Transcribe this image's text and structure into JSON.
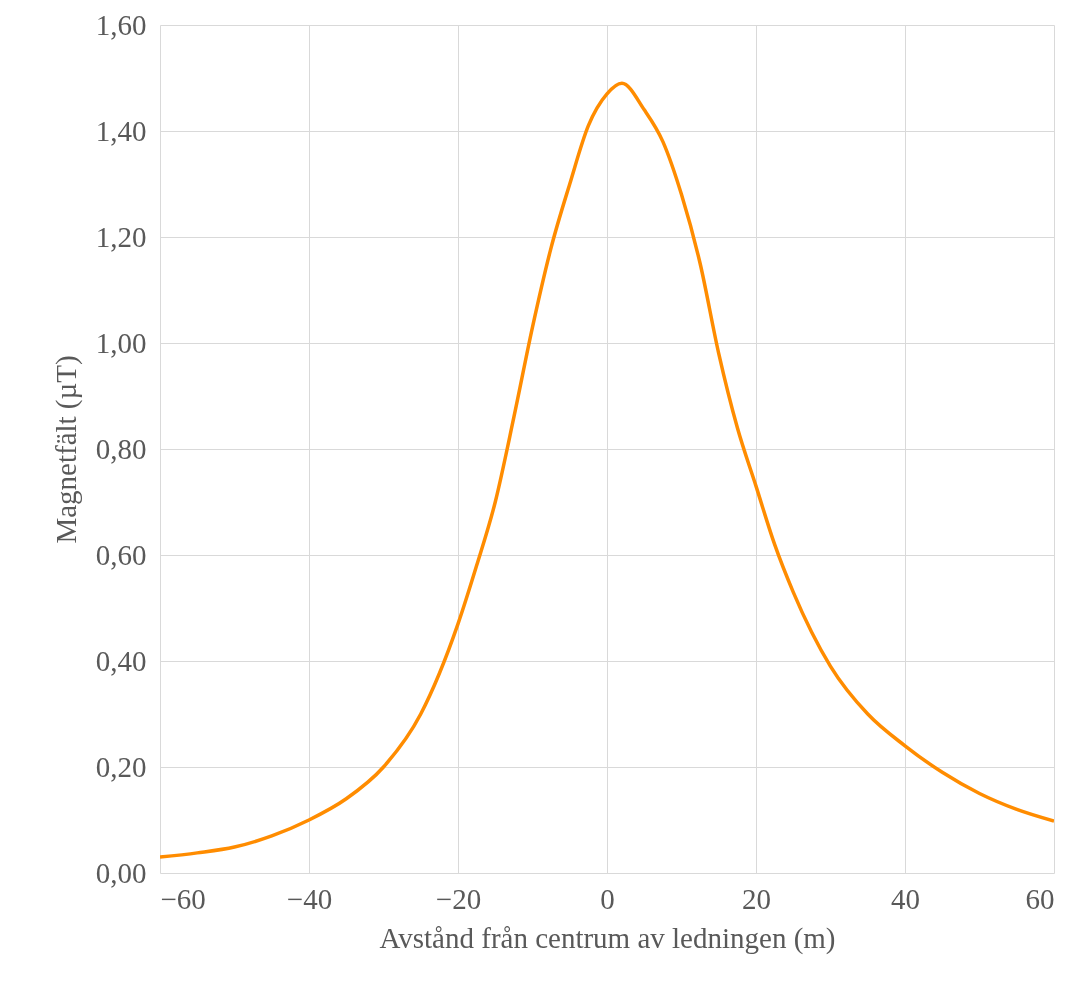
{
  "chart_data": {
    "type": "line",
    "xlabel": "Avstånd från centrum av ledningen (m)",
    "ylabel": "Magnetfält (µT)",
    "x": [
      -60,
      -55,
      -50,
      -45,
      -40,
      -35,
      -30,
      -25,
      -20,
      -17.5,
      -15,
      -12.5,
      -10,
      -7.5,
      -5,
      -2.5,
      0,
      2,
      5,
      7.5,
      10,
      12.5,
      15,
      17.5,
      20,
      22.5,
      25,
      30,
      35,
      40,
      45,
      50,
      55,
      60
    ],
    "series": [
      {
        "color": "#ff8c00",
        "values": [
          0.03,
          0.038,
          0.049,
          0.07,
          0.1,
          0.14,
          0.2,
          0.3,
          0.47,
          0.58,
          0.7,
          0.86,
          1.03,
          1.18,
          1.3,
          1.41,
          1.47,
          1.49,
          1.44,
          1.38,
          1.28,
          1.15,
          0.98,
          0.84,
          0.73,
          0.62,
          0.53,
          0.39,
          0.3,
          0.24,
          0.19,
          0.15,
          0.12,
          0.098
        ]
      }
    ],
    "xlim": [
      -60,
      60
    ],
    "xticks": [
      -60,
      -40,
      -20,
      0,
      20,
      40,
      60
    ],
    "ylim": [
      0,
      1.6
    ],
    "yticks": [
      {
        "value": 0,
        "label": "0,00"
      },
      {
        "value": 0.2,
        "label": "0,20"
      },
      {
        "value": 0.4,
        "label": "0,40"
      },
      {
        "value": 0.6,
        "label": "0,60"
      },
      {
        "value": 0.8,
        "label": "0,80"
      },
      {
        "value": 1,
        "label": "1,00"
      },
      {
        "value": 1.2,
        "label": "1,20"
      },
      {
        "value": 1.4,
        "label": "1,40"
      },
      {
        "value": 1.6,
        "label": "1,60"
      }
    ],
    "grid": true,
    "marker": "none",
    "line_style": "solid"
  }
}
